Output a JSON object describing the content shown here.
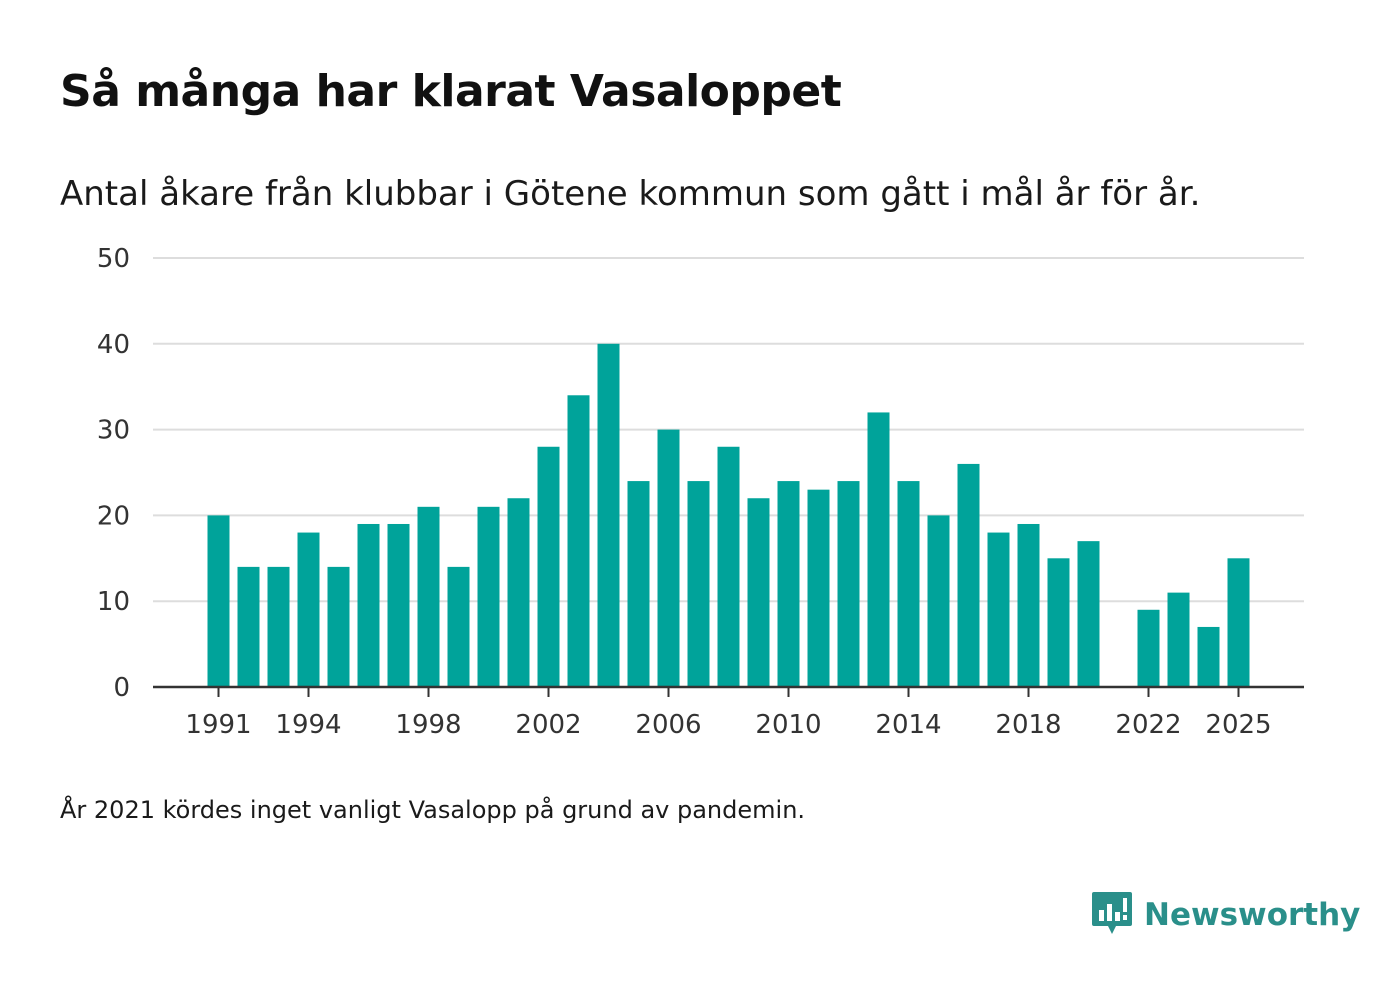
{
  "title": "Så många har klarat Vasaloppet",
  "subtitle": "Antal åkare från klubbar i Götene kommun som gått i mål år för år.",
  "footnote": "År 2021 kördes inget vanligt Vasalopp på grund av pandemin.",
  "brand": {
    "name": "Newsworthy",
    "icon": "newsworthy-logo-icon"
  },
  "colors": {
    "bar": "#00a39a",
    "grid": "#dddddd",
    "axis": "#333333",
    "brand": "#2a8f8a"
  },
  "chart_data": {
    "type": "bar",
    "title": "Så många har klarat Vasaloppet",
    "xlabel": "",
    "ylabel": "",
    "ylim": [
      0,
      50
    ],
    "yticks": [
      0,
      10,
      20,
      30,
      40,
      50
    ],
    "xticks": [
      1991,
      1994,
      1998,
      2002,
      2006,
      2010,
      2014,
      2018,
      2022,
      2025
    ],
    "grid": true,
    "categories": [
      1991,
      1992,
      1993,
      1994,
      1995,
      1996,
      1997,
      1998,
      1999,
      2000,
      2001,
      2002,
      2003,
      2004,
      2005,
      2006,
      2007,
      2008,
      2009,
      2010,
      2011,
      2012,
      2013,
      2014,
      2015,
      2016,
      2017,
      2018,
      2019,
      2020,
      2021,
      2022,
      2023,
      2024,
      2025
    ],
    "values": [
      20,
      14,
      14,
      18,
      14,
      19,
      19,
      21,
      14,
      21,
      22,
      28,
      34,
      40,
      24,
      30,
      24,
      28,
      22,
      24,
      23,
      24,
      32,
      24,
      20,
      26,
      18,
      19,
      15,
      17,
      null,
      9,
      11,
      7,
      15
    ]
  }
}
